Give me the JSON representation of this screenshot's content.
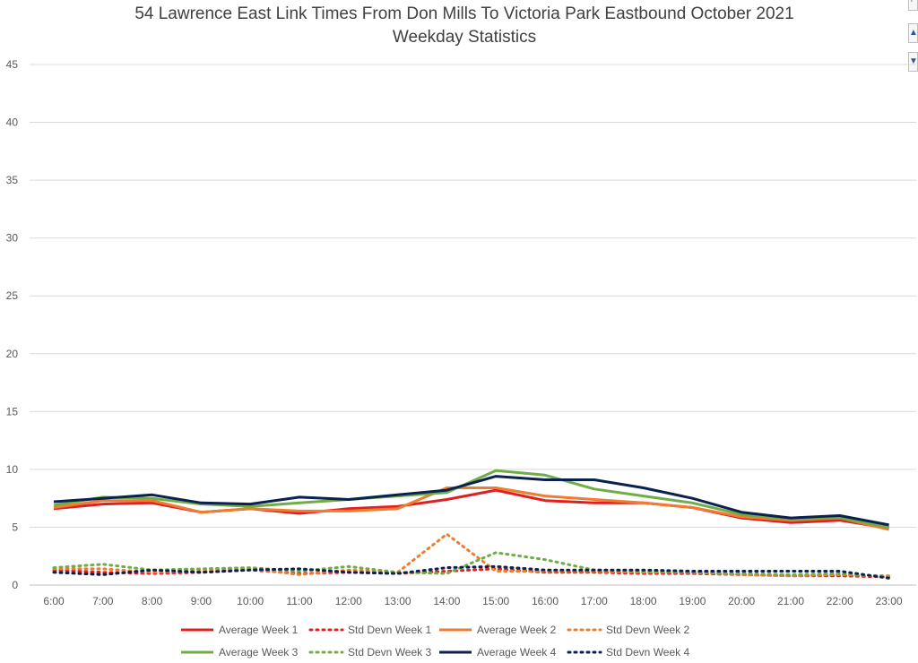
{
  "chart_data": {
    "type": "line",
    "title": "54 Lawrence East Link Times From Don Mills To Victoria Park Eastbound October 2021",
    "subtitle": "Weekday Statistics",
    "xlabel": "",
    "ylabel": "",
    "ylim": [
      0,
      45
    ],
    "yticks": [
      "0",
      "5",
      "10",
      "15",
      "20",
      "25",
      "30",
      "35",
      "40",
      "45"
    ],
    "grid": true,
    "legend_position": "bottom",
    "categories": [
      "6:00",
      "7:00",
      "8:00",
      "9:00",
      "10:00",
      "11:00",
      "12:00",
      "13:00",
      "14:00",
      "15:00",
      "16:00",
      "17:00",
      "18:00",
      "19:00",
      "20:00",
      "21:00",
      "22:00",
      "23:00"
    ],
    "series": [
      {
        "name": "Average Week 1",
        "style": "solid",
        "color": "#e02020",
        "values": [
          6.6,
          7.0,
          7.1,
          6.3,
          6.6,
          6.2,
          6.6,
          6.8,
          7.4,
          8.2,
          7.3,
          7.1,
          7.1,
          6.7,
          5.8,
          5.4,
          5.6,
          4.9
        ]
      },
      {
        "name": "Std Devn Week 1",
        "style": "dotted",
        "color": "#e02020",
        "values": [
          1.3,
          1.1,
          1.0,
          1.1,
          1.3,
          1.0,
          1.1,
          1.0,
          1.2,
          1.4,
          1.1,
          1.1,
          1.0,
          1.0,
          0.9,
          0.8,
          0.8,
          0.7
        ]
      },
      {
        "name": "Average Week 2",
        "style": "solid",
        "color": "#ed7d31",
        "values": [
          6.7,
          7.3,
          7.3,
          6.3,
          6.6,
          6.4,
          6.4,
          6.6,
          8.4,
          8.4,
          7.7,
          7.4,
          7.1,
          6.7,
          5.9,
          5.6,
          5.8,
          4.8
        ]
      },
      {
        "name": "Std Devn Week 2",
        "style": "dotted",
        "color": "#ed7d31",
        "values": [
          1.4,
          1.4,
          1.1,
          1.2,
          1.4,
          0.9,
          1.3,
          1.1,
          4.4,
          1.2,
          1.2,
          1.2,
          1.1,
          1.1,
          0.9,
          0.8,
          0.9,
          0.8
        ]
      },
      {
        "name": "Average Week 3",
        "style": "solid",
        "color": "#70ad47",
        "values": [
          6.9,
          7.6,
          7.5,
          7.0,
          6.8,
          7.1,
          7.4,
          7.7,
          8.0,
          9.9,
          9.5,
          8.3,
          7.7,
          7.1,
          6.1,
          5.7,
          5.8,
          5.0
        ]
      },
      {
        "name": "Std Devn Week 3",
        "style": "dotted",
        "color": "#70ad47",
        "values": [
          1.5,
          1.8,
          1.3,
          1.4,
          1.5,
          1.2,
          1.6,
          1.1,
          1.0,
          2.8,
          2.2,
          1.3,
          1.2,
          1.1,
          1.0,
          0.9,
          1.0,
          0.7
        ]
      },
      {
        "name": "Average Week 4",
        "style": "solid",
        "color": "#0b2150",
        "values": [
          7.2,
          7.5,
          7.8,
          7.1,
          7.0,
          7.6,
          7.4,
          7.8,
          8.2,
          9.4,
          9.1,
          9.1,
          8.4,
          7.5,
          6.3,
          5.8,
          6.0,
          5.2
        ]
      },
      {
        "name": "Std Devn Week 4",
        "style": "dotted",
        "color": "#0b2150",
        "values": [
          1.1,
          0.9,
          1.3,
          1.1,
          1.3,
          1.4,
          1.1,
          1.0,
          1.5,
          1.6,
          1.3,
          1.3,
          1.3,
          1.2,
          1.2,
          1.2,
          1.2,
          0.6
        ]
      }
    ]
  },
  "controls": {
    "btn_1": "+",
    "btn_2": "▲",
    "btn_3": "▼"
  }
}
